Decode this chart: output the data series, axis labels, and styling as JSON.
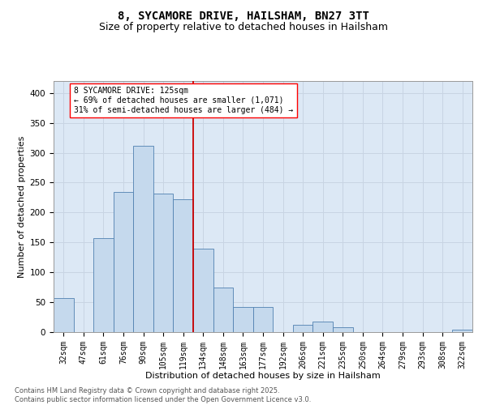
{
  "title1": "8, SYCAMORE DRIVE, HAILSHAM, BN27 3TT",
  "title2": "Size of property relative to detached houses in Hailsham",
  "xlabel": "Distribution of detached houses by size in Hailsham",
  "ylabel": "Number of detached properties",
  "categories": [
    "32sqm",
    "47sqm",
    "61sqm",
    "76sqm",
    "90sqm",
    "105sqm",
    "119sqm",
    "134sqm",
    "148sqm",
    "163sqm",
    "177sqm",
    "192sqm",
    "206sqm",
    "221sqm",
    "235sqm",
    "250sqm",
    "264sqm",
    "279sqm",
    "293sqm",
    "308sqm",
    "322sqm"
  ],
  "values": [
    57,
    0,
    157,
    235,
    312,
    232,
    222,
    140,
    75,
    42,
    42,
    0,
    12,
    18,
    8,
    0,
    0,
    0,
    0,
    0,
    4
  ],
  "bar_color": "#c5d9ed",
  "bar_edge_color": "#5080b0",
  "vline_x_index": 7,
  "vline_color": "#cc0000",
  "annotation_text": "8 SYCAMORE DRIVE: 125sqm\n← 69% of detached houses are smaller (1,071)\n31% of semi-detached houses are larger (484) →",
  "ylim": [
    0,
    420
  ],
  "yticks": [
    0,
    50,
    100,
    150,
    200,
    250,
    300,
    350,
    400
  ],
  "grid_color": "#c8d4e3",
  "background_color": "#dce8f5",
  "footer": "Contains HM Land Registry data © Crown copyright and database right 2025.\nContains public sector information licensed under the Open Government Licence v3.0.",
  "title1_fontsize": 10,
  "title2_fontsize": 9,
  "axis_label_fontsize": 8,
  "tick_fontsize": 7,
  "footer_fontsize": 6,
  "ann_fontsize": 7
}
